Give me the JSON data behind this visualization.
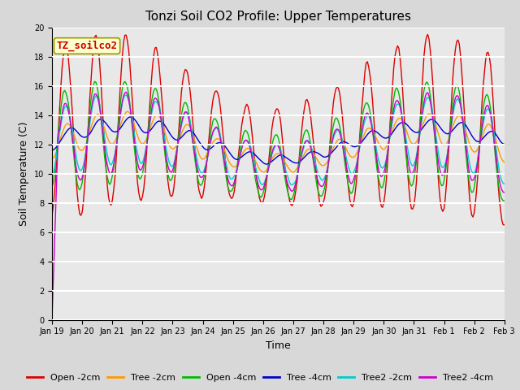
{
  "title": "Tonzi Soil CO2 Profile: Upper Temperatures",
  "xlabel": "Time",
  "ylabel": "Soil Temperature (C)",
  "ylim": [
    0,
    20
  ],
  "annotation": "TZ_soilco2",
  "annotation_color": "#cc0000",
  "annotation_bg": "#ffffcc",
  "plot_bg": "#e8e8e8",
  "xtick_labels": [
    "Jan 19",
    "Jan 20",
    "Jan 21",
    "Jan 22",
    "Jan 23",
    "Jan 24",
    "Jan 25",
    "Jan 26",
    "Jan 27",
    "Jan 28",
    "Jan 29",
    "Jan 30",
    "Jan 31",
    "Feb 1",
    "Feb 2",
    "Feb 3"
  ],
  "series": [
    {
      "label": "Open -2cm",
      "color": "#dd0000"
    },
    {
      "label": "Tree -2cm",
      "color": "#ff9900"
    },
    {
      "label": "Open -4cm",
      "color": "#00bb00"
    },
    {
      "label": "Tree -4cm",
      "color": "#0000cc"
    },
    {
      "label": "Tree2 -2cm",
      "color": "#00cccc"
    },
    {
      "label": "Tree2 -4cm",
      "color": "#cc00cc"
    }
  ],
  "linewidth": 1.0,
  "title_fontsize": 11,
  "axis_label_fontsize": 9,
  "tick_fontsize": 7,
  "legend_fontsize": 8
}
